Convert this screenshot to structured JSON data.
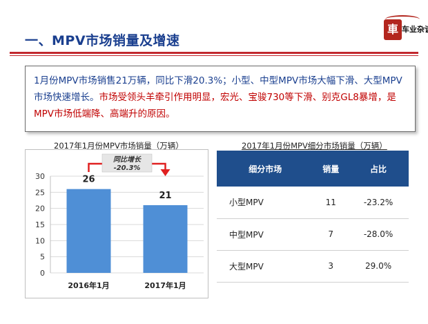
{
  "header": {
    "title": "一、MPV市场销量及增速"
  },
  "logo": {
    "seal_char": "車",
    "text": "车业杂谈"
  },
  "summary": {
    "part1": "1月份MPV市场销售21万辆，同比下滑20.3%；小型、中型MPV市场大幅下滑、大型MPV市场快速增长。",
    "part2": "市场受领头羊牵引作用明显，宏光、宝骏730等下滑、别克GL8暴增，是MPV市场低端降、高端升的原因。"
  },
  "chart_data": [
    {
      "type": "bar",
      "title": "2017年1月份MPV市场销量（万辆）",
      "categories": [
        "2016年1月",
        "2017年1月"
      ],
      "values": [
        26,
        21
      ],
      "data_labels": [
        "26",
        "21"
      ],
      "ylim": [
        0,
        30
      ],
      "yticks": [
        "0",
        "5",
        "10",
        "15",
        "20",
        "25",
        "30"
      ],
      "grid": true,
      "bar_color": "#4f8fd6",
      "annotation": {
        "line1": "同比增长",
        "line2": "-20.3%",
        "color": "#e02020"
      }
    },
    {
      "type": "table",
      "title": "2017年1月份MPV细分市场销量（万辆）",
      "columns": [
        "细分市场",
        "销量",
        "占比"
      ],
      "rows": [
        [
          "小型MPV",
          "11",
          "-23.2%"
        ],
        [
          "中型MPV",
          "7",
          "-28.0%"
        ],
        [
          "大型MPV",
          "3",
          "29.0%"
        ]
      ],
      "header_color": "#1f4e8c"
    }
  ]
}
